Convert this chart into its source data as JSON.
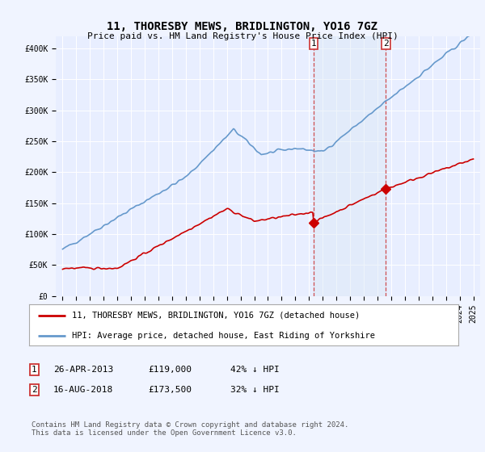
{
  "title": "11, THORESBY MEWS, BRIDLINGTON, YO16 7GZ",
  "subtitle": "Price paid vs. HM Land Registry's House Price Index (HPI)",
  "background_color": "#f0f4ff",
  "plot_bg_color": "#e8eeff",
  "ylim": [
    0,
    420000
  ],
  "yticks": [
    0,
    50000,
    100000,
    150000,
    200000,
    250000,
    300000,
    350000,
    400000
  ],
  "ytick_labels": [
    "£0",
    "£50K",
    "£100K",
    "£150K",
    "£200K",
    "£250K",
    "£300K",
    "£350K",
    "£400K"
  ],
  "sale1_x": 2013.32,
  "sale1_price": 119000,
  "sale2_x": 2018.62,
  "sale2_price": 173500,
  "legend_entry1": "11, THORESBY MEWS, BRIDLINGTON, YO16 7GZ (detached house)",
  "legend_entry2": "HPI: Average price, detached house, East Riding of Yorkshire",
  "footer": "Contains HM Land Registry data © Crown copyright and database right 2024.\nThis data is licensed under the Open Government Licence v3.0.",
  "red_color": "#cc0000",
  "blue_color": "#6699cc",
  "shade_color": "#dce8f5",
  "dashed_color": "#cc3333",
  "xlim_left": 1994.5,
  "xlim_right": 2025.5,
  "title_fontsize": 10,
  "subtitle_fontsize": 8,
  "tick_fontsize": 7,
  "legend_fontsize": 7.5
}
